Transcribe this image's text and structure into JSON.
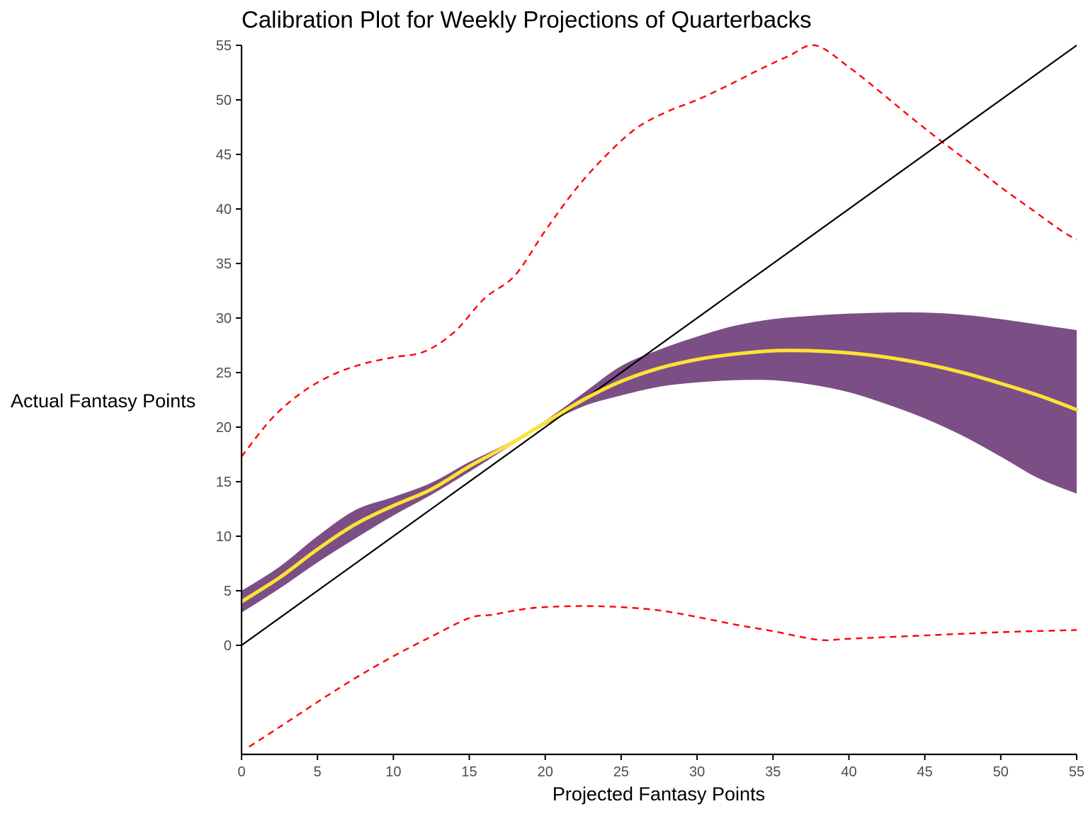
{
  "chart_data": {
    "type": "line",
    "title": "Calibration Plot for Weekly Projections of Quarterbacks",
    "xlabel": "Projected Fantasy Points",
    "ylabel": "Actual Fantasy Points",
    "xlim": [
      0,
      55
    ],
    "ylim": [
      -10,
      55
    ],
    "x_ticks": [
      "0",
      "5",
      "10",
      "15",
      "20",
      "25",
      "30",
      "35",
      "40",
      "45",
      "50",
      "55"
    ],
    "y_ticks": [
      "0",
      "5",
      "10",
      "15",
      "20",
      "25",
      "30",
      "35",
      "40",
      "45",
      "50",
      "55"
    ],
    "grid": false,
    "legend": "none",
    "colors": {
      "ribbon": "#7B4F86",
      "fit": "#FDE333",
      "bounds": "#FF0000",
      "identity": "#000000",
      "axis": "#000000",
      "tick_text": "#4d4d4d"
    },
    "series": [
      {
        "kind": "ribbon",
        "x": [
          0,
          2.5,
          5,
          7.5,
          10,
          12.5,
          15,
          17.5,
          20,
          22.5,
          25,
          27.5,
          30,
          32.5,
          35,
          37.5,
          40,
          42.5,
          45,
          47.5,
          50,
          52.5,
          55
        ],
        "lower": [
          3.0,
          5.2,
          7.6,
          9.8,
          11.9,
          13.8,
          15.9,
          18.1,
          20.2,
          21.9,
          22.9,
          23.7,
          24.1,
          24.3,
          24.3,
          23.9,
          23.2,
          22.1,
          20.8,
          19.2,
          17.3,
          15.3,
          13.9
        ],
        "upper": [
          5.0,
          7.2,
          10.0,
          12.4,
          13.6,
          14.9,
          16.8,
          18.5,
          20.6,
          23.1,
          25.6,
          27.1,
          28.3,
          29.3,
          29.9,
          30.2,
          30.4,
          30.5,
          30.5,
          30.3,
          29.9,
          29.4,
          28.9
        ]
      },
      {
        "kind": "fit",
        "x": [
          0,
          2.5,
          5,
          7.5,
          10,
          12.5,
          15,
          17.5,
          20,
          22.5,
          25,
          27.5,
          30,
          32.5,
          35,
          37.5,
          40,
          42.5,
          45,
          47.5,
          50,
          52.5,
          55
        ],
        "y": [
          4.0,
          6.2,
          8.8,
          11.1,
          12.8,
          14.3,
          16.4,
          18.3,
          20.4,
          22.5,
          24.2,
          25.4,
          26.2,
          26.7,
          27.0,
          27.0,
          26.8,
          26.4,
          25.8,
          25.0,
          24.0,
          22.9,
          21.6
        ]
      },
      {
        "kind": "upper-bound",
        "x": [
          0,
          2,
          4,
          6,
          8,
          10,
          12,
          14,
          16,
          18,
          20,
          22,
          24,
          26,
          28,
          30,
          32,
          34,
          36,
          37.8,
          40,
          42,
          44,
          46,
          48,
          50,
          52,
          54,
          55
        ],
        "y": [
          17.3,
          20.8,
          23.2,
          24.8,
          25.8,
          26.4,
          26.9,
          28.7,
          31.8,
          33.9,
          38.0,
          41.8,
          44.9,
          47.4,
          48.9,
          50.0,
          51.3,
          52.7,
          54.0,
          55.0,
          53.0,
          50.8,
          48.5,
          46.3,
          44.2,
          42.0,
          40.0,
          38.0,
          37.2
        ]
      },
      {
        "kind": "lower-bound",
        "x": [
          0.5,
          2.5,
          5,
          7.5,
          10,
          12.5,
          15,
          16.5,
          18.5,
          20,
          22.5,
          25,
          27.5,
          30,
          32.5,
          35,
          38,
          40,
          45,
          50,
          55
        ],
        "y": [
          -9.3,
          -7.5,
          -5.2,
          -3.0,
          -1.0,
          0.8,
          2.5,
          2.8,
          3.3,
          3.5,
          3.6,
          3.5,
          3.2,
          2.6,
          1.9,
          1.3,
          0.5,
          0.6,
          0.9,
          1.2,
          1.4
        ]
      },
      {
        "kind": "identity",
        "x": [
          0,
          55
        ],
        "y": [
          0,
          55
        ]
      }
    ]
  }
}
